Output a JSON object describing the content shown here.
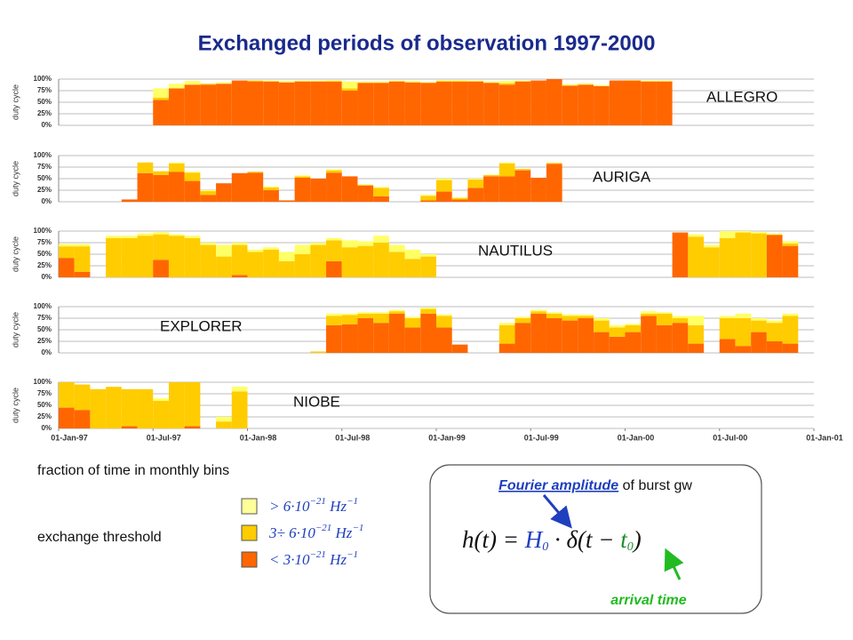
{
  "title": "Exchanged periods of observation 1997-2000",
  "chart_data": [
    {
      "type": "bar",
      "stacked": true,
      "label": "ALLEGRO",
      "ylabel": "duty cycle",
      "grid": true,
      "ylim": [
        0,
        100
      ],
      "yticks": [
        {
          "value": 0,
          "label": "0%"
        },
        {
          "value": 25,
          "label": "25%"
        },
        {
          "value": 50,
          "label": "50%"
        },
        {
          "value": 75,
          "label": "75%"
        },
        {
          "value": 100,
          "label": "100%"
        }
      ],
      "xlim": [
        0,
        48
      ],
      "series": [
        {
          "color": "#ff6600",
          "values": [
            0,
            0,
            0,
            0,
            0,
            0,
            55,
            80,
            88,
            88,
            90,
            97,
            95,
            95,
            93,
            95,
            95,
            95,
            75,
            92,
            92,
            95,
            93,
            92,
            95,
            95,
            95,
            92,
            88,
            95,
            97,
            100,
            86,
            88,
            85,
            97,
            97,
            95,
            95,
            0,
            0,
            0,
            0,
            0,
            0,
            0,
            0,
            0
          ]
        },
        {
          "color": "#ffcc00",
          "values": [
            0,
            0,
            0,
            0,
            0,
            0,
            5,
            0,
            0,
            2,
            0,
            0,
            2,
            0,
            0,
            0,
            0,
            0,
            5,
            0,
            0,
            0,
            0,
            0,
            0,
            0,
            0,
            0,
            3,
            0,
            0,
            0,
            0,
            0,
            0,
            0,
            0,
            0,
            0,
            0,
            0,
            0,
            0,
            0,
            0,
            0,
            0,
            0
          ]
        },
        {
          "color": "#ffff66",
          "values": [
            0,
            0,
            0,
            0,
            0,
            0,
            20,
            10,
            8,
            0,
            3,
            0,
            0,
            2,
            3,
            2,
            2,
            3,
            15,
            3,
            3,
            2,
            3,
            2,
            3,
            3,
            2,
            3,
            5,
            2,
            0,
            0,
            3,
            3,
            2,
            0,
            1,
            2,
            2,
            0,
            0,
            0,
            0,
            0,
            0,
            0,
            0,
            0
          ]
        }
      ]
    },
    {
      "type": "bar",
      "stacked": true,
      "label": "AURIGA",
      "ylabel": "duty cycle",
      "grid": true,
      "ylim": [
        0,
        100
      ],
      "yticks": [
        {
          "value": 0,
          "label": "0%"
        },
        {
          "value": 25,
          "label": "25%"
        },
        {
          "value": 50,
          "label": "50%"
        },
        {
          "value": 75,
          "label": "75%"
        },
        {
          "value": 100,
          "label": "100%"
        }
      ],
      "xlim": [
        0,
        48
      ],
      "series": [
        {
          "color": "#ff6600",
          "values": [
            0,
            0,
            0,
            0,
            5,
            62,
            58,
            65,
            45,
            15,
            40,
            62,
            63,
            25,
            3,
            52,
            50,
            63,
            55,
            35,
            12,
            0,
            0,
            3,
            22,
            5,
            30,
            55,
            55,
            68,
            52,
            82,
            0,
            0,
            0,
            0,
            0,
            0,
            0,
            0,
            0,
            0,
            0,
            0,
            0,
            0,
            0,
            0
          ]
        },
        {
          "color": "#ffcc00",
          "values": [
            0,
            0,
            0,
            0,
            0,
            23,
            8,
            18,
            18,
            8,
            0,
            0,
            2,
            6,
            0,
            3,
            0,
            5,
            0,
            2,
            18,
            0,
            0,
            10,
            25,
            3,
            18,
            3,
            28,
            3,
            0,
            2,
            0,
            0,
            0,
            0,
            0,
            0,
            0,
            0,
            0,
            0,
            0,
            0,
            0,
            0,
            0,
            0
          ]
        },
        {
          "color": "#ffff66",
          "values": [
            0,
            0,
            0,
            0,
            0,
            0,
            0,
            2,
            2,
            2,
            0,
            0,
            0,
            2,
            0,
            2,
            0,
            2,
            0,
            0,
            2,
            0,
            0,
            2,
            3,
            2,
            2,
            0,
            2,
            0,
            0,
            0,
            0,
            0,
            0,
            0,
            0,
            0,
            0,
            0,
            0,
            0,
            0,
            0,
            0,
            0,
            0,
            0
          ]
        }
      ]
    },
    {
      "type": "bar",
      "stacked": true,
      "label": "NAUTILUS",
      "ylabel": "duty cycle",
      "grid": true,
      "ylim": [
        0,
        100
      ],
      "yticks": [
        {
          "value": 0,
          "label": "0%"
        },
        {
          "value": 25,
          "label": "25%"
        },
        {
          "value": 50,
          "label": "50%"
        },
        {
          "value": 75,
          "label": "75%"
        },
        {
          "value": 100,
          "label": "100%"
        }
      ],
      "xlim": [
        0,
        48
      ],
      "series": [
        {
          "color": "#ff6600",
          "values": [
            42,
            12,
            0,
            0,
            0,
            0,
            38,
            0,
            0,
            0,
            0,
            5,
            0,
            0,
            0,
            0,
            0,
            35,
            0,
            0,
            0,
            0,
            0,
            0,
            0,
            0,
            0,
            0,
            0,
            0,
            0,
            0,
            0,
            0,
            0,
            0,
            0,
            0,
            0,
            97,
            0,
            0,
            0,
            0,
            0,
            92,
            68,
            0
          ]
        },
        {
          "color": "#ffcc00",
          "values": [
            25,
            55,
            0,
            85,
            85,
            90,
            55,
            90,
            85,
            70,
            45,
            65,
            55,
            60,
            35,
            50,
            70,
            45,
            65,
            68,
            75,
            55,
            40,
            45,
            0,
            0,
            0,
            0,
            0,
            0,
            0,
            0,
            0,
            0,
            0,
            0,
            0,
            0,
            0,
            0,
            88,
            65,
            85,
            97,
            95,
            0,
            5,
            0
          ]
        },
        {
          "color": "#ffff66",
          "values": [
            5,
            5,
            0,
            5,
            5,
            5,
            5,
            3,
            5,
            5,
            25,
            5,
            5,
            5,
            20,
            20,
            5,
            5,
            15,
            10,
            15,
            15,
            20,
            5,
            0,
            0,
            0,
            0,
            0,
            0,
            0,
            0,
            0,
            0,
            0,
            0,
            0,
            0,
            0,
            0,
            5,
            5,
            15,
            3,
            3,
            3,
            5,
            0
          ]
        }
      ]
    },
    {
      "type": "bar",
      "stacked": true,
      "label": "EXPLORER",
      "ylabel": "duty cycle",
      "grid": true,
      "ylim": [
        0,
        100
      ],
      "yticks": [
        {
          "value": 0,
          "label": "0%"
        },
        {
          "value": 25,
          "label": "25%"
        },
        {
          "value": 50,
          "label": "50%"
        },
        {
          "value": 75,
          "label": "75%"
        },
        {
          "value": 100,
          "label": "100%"
        }
      ],
      "xlim": [
        0,
        48
      ],
      "series": [
        {
          "color": "#ff6600",
          "values": [
            0,
            0,
            0,
            0,
            0,
            0,
            0,
            0,
            0,
            0,
            0,
            0,
            0,
            0,
            0,
            0,
            0,
            60,
            62,
            75,
            65,
            85,
            55,
            85,
            55,
            18,
            0,
            0,
            20,
            65,
            85,
            75,
            70,
            75,
            45,
            35,
            45,
            80,
            60,
            65,
            20,
            0,
            30,
            15,
            45,
            25,
            20,
            0
          ]
        },
        {
          "color": "#ffcc00",
          "values": [
            0,
            0,
            0,
            0,
            0,
            0,
            0,
            0,
            0,
            0,
            0,
            0,
            0,
            0,
            0,
            0,
            3,
            20,
            20,
            10,
            20,
            5,
            20,
            10,
            25,
            0,
            0,
            0,
            40,
            10,
            5,
            10,
            10,
            5,
            25,
            20,
            15,
            5,
            25,
            10,
            40,
            0,
            45,
            60,
            25,
            40,
            60,
            0
          ]
        },
        {
          "color": "#ffff66",
          "values": [
            0,
            0,
            0,
            0,
            0,
            0,
            0,
            0,
            0,
            0,
            0,
            0,
            0,
            0,
            0,
            0,
            0,
            5,
            3,
            3,
            3,
            3,
            3,
            3,
            3,
            0,
            0,
            0,
            5,
            3,
            3,
            3,
            3,
            3,
            5,
            5,
            3,
            5,
            3,
            5,
            20,
            0,
            5,
            10,
            5,
            5,
            5,
            0
          ]
        }
      ]
    },
    {
      "type": "bar",
      "stacked": true,
      "label": "NIOBE",
      "ylabel": "duty cycle",
      "grid": true,
      "ylim": [
        0,
        100
      ],
      "yticks": [
        {
          "value": 0,
          "label": "0%"
        },
        {
          "value": 25,
          "label": "25%"
        },
        {
          "value": 50,
          "label": "50%"
        },
        {
          "value": 75,
          "label": "75%"
        },
        {
          "value": 100,
          "label": "100%"
        }
      ],
      "xlim": [
        0,
        48
      ],
      "xticks": [
        {
          "value": 0,
          "label": "01-Jan-97"
        },
        {
          "value": 6,
          "label": "01-Jul-97"
        },
        {
          "value": 12,
          "label": "01-Jan-98"
        },
        {
          "value": 18,
          "label": "01-Jul-98"
        },
        {
          "value": 24,
          "label": "01-Jan-99"
        },
        {
          "value": 30,
          "label": "01-Jul-99"
        },
        {
          "value": 36,
          "label": "01-Jan-00"
        },
        {
          "value": 42,
          "label": "01-Jul-00"
        },
        {
          "value": 48,
          "label": "01-Jan-01"
        }
      ],
      "series": [
        {
          "color": "#ff6600",
          "values": [
            45,
            40,
            0,
            0,
            5,
            0,
            0,
            0,
            5,
            0,
            0,
            0,
            0,
            0,
            0,
            0,
            0,
            0,
            0,
            0,
            0,
            0,
            0,
            0,
            0,
            0,
            0,
            0,
            0,
            0,
            0,
            0,
            0,
            0,
            0,
            0,
            0,
            0,
            0,
            0,
            0,
            0,
            0,
            0,
            0,
            0,
            0,
            0
          ]
        },
        {
          "color": "#ffcc00",
          "values": [
            55,
            55,
            85,
            90,
            80,
            85,
            60,
            100,
            95,
            0,
            15,
            80,
            0,
            0,
            0,
            0,
            0,
            0,
            0,
            0,
            0,
            0,
            0,
            0,
            0,
            0,
            0,
            0,
            0,
            0,
            0,
            0,
            0,
            0,
            0,
            0,
            0,
            0,
            0,
            0,
            0,
            0,
            0,
            0,
            0,
            0,
            0,
            0
          ]
        },
        {
          "color": "#ffff66",
          "values": [
            0,
            0,
            0,
            0,
            0,
            0,
            5,
            0,
            0,
            0,
            10,
            10,
            0,
            0,
            0,
            0,
            0,
            0,
            0,
            0,
            0,
            0,
            0,
            0,
            0,
            0,
            0,
            0,
            0,
            0,
            0,
            0,
            0,
            0,
            0,
            0,
            0,
            0,
            0,
            0,
            0,
            0,
            0,
            0,
            0,
            0,
            0,
            0
          ]
        }
      ]
    }
  ],
  "notes": {
    "bins": "fraction of time in monthly bins",
    "threshold": "exchange threshold"
  },
  "legend": [
    {
      "color": "#ffff99",
      "prefix": "> 6·10",
      "exp": "−21",
      "unit": " Hz",
      "unit_exp": "−1"
    },
    {
      "color": "#ffcc00",
      "prefix": "3÷ 6·10",
      "exp": "−21",
      "unit": " Hz",
      "unit_exp": "−1"
    },
    {
      "color": "#ff6600",
      "prefix": "< 3·10",
      "exp": "−21",
      "unit": " Hz",
      "unit_exp": "−1"
    }
  ],
  "formula_box": {
    "link": "Fourier amplitude",
    "rest": " of burst gw",
    "lhs": "h(t) = ",
    "amp": "H",
    "amp_sub": "0",
    "mid": " · δ(t − ",
    "time": "t",
    "time_sub": "0",
    "close": ")",
    "arrival": "arrival time"
  }
}
